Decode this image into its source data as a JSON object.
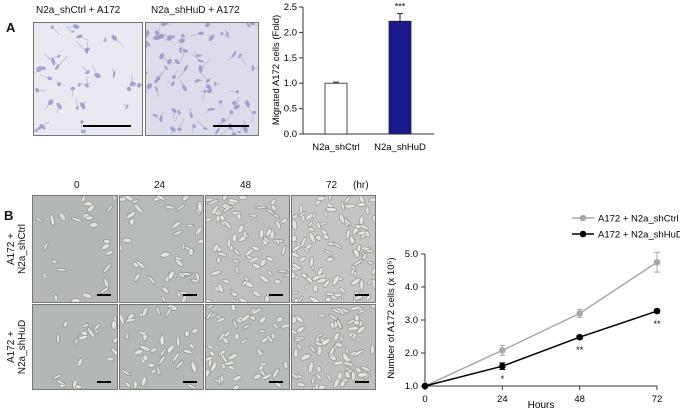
{
  "panel_a": {
    "letter": "A",
    "image_captions": [
      "N2a_shCtrl + A172",
      "N2a_shHuD + A172"
    ]
  },
  "panel_b": {
    "letter": "B",
    "time_headers": [
      "0",
      "24",
      "48",
      "72"
    ],
    "time_unit": "(hr)",
    "row_labels": [
      {
        "line1": "A172 +",
        "line2": "N2a_shCtrl"
      },
      {
        "line1": "A172 +",
        "line2": "N2a_shHuD"
      }
    ]
  },
  "colors": {
    "bar_ctrl_fill": "#ffffff",
    "bar_hud_fill": "#1a1a8c",
    "series_ctrl": "#a8a8a8",
    "series_hud": "#000000",
    "stain_purple": "#8e8cc6",
    "phase_gray": "#b9bdb8"
  },
  "chart_data": [
    {
      "type": "bar",
      "categories": [
        "N2a_shCtrl",
        "N2a_shHuD"
      ],
      "values": [
        1.0,
        2.22
      ],
      "errors": [
        0.02,
        0.15
      ],
      "ylabel": "Migrated A172 cells (Fold)",
      "ylim": [
        0,
        2.5
      ],
      "yticks": [
        "0.0",
        "0.5",
        "1.0",
        "1.5",
        "2.0",
        "2.5"
      ],
      "annotations": [
        "",
        "***"
      ]
    },
    {
      "type": "line",
      "x": [
        0,
        24,
        48,
        72
      ],
      "xlabel": "Hours",
      "ylabel": "Number of A172 cells (x 10⁵)",
      "ylim": [
        1.0,
        5.0
      ],
      "yticks": [
        "1.0",
        "2.0",
        "3.0",
        "4.0",
        "5.0"
      ],
      "xticks": [
        "0",
        "24",
        "48",
        "72"
      ],
      "legend_position": "top-right",
      "series": [
        {
          "name": "A172 + N2a_shCtrl",
          "values": [
            1.0,
            2.08,
            3.2,
            4.75
          ],
          "errors": [
            0.0,
            0.15,
            0.12,
            0.3
          ],
          "annotations": [
            "",
            "",
            "",
            ""
          ]
        },
        {
          "name": "A172 + N2a_shHuD",
          "values": [
            1.0,
            1.6,
            2.48,
            3.27
          ],
          "errors": [
            0.0,
            0.1,
            0.05,
            0.05
          ],
          "annotations": [
            "",
            "*",
            "**",
            "**"
          ]
        }
      ]
    }
  ]
}
